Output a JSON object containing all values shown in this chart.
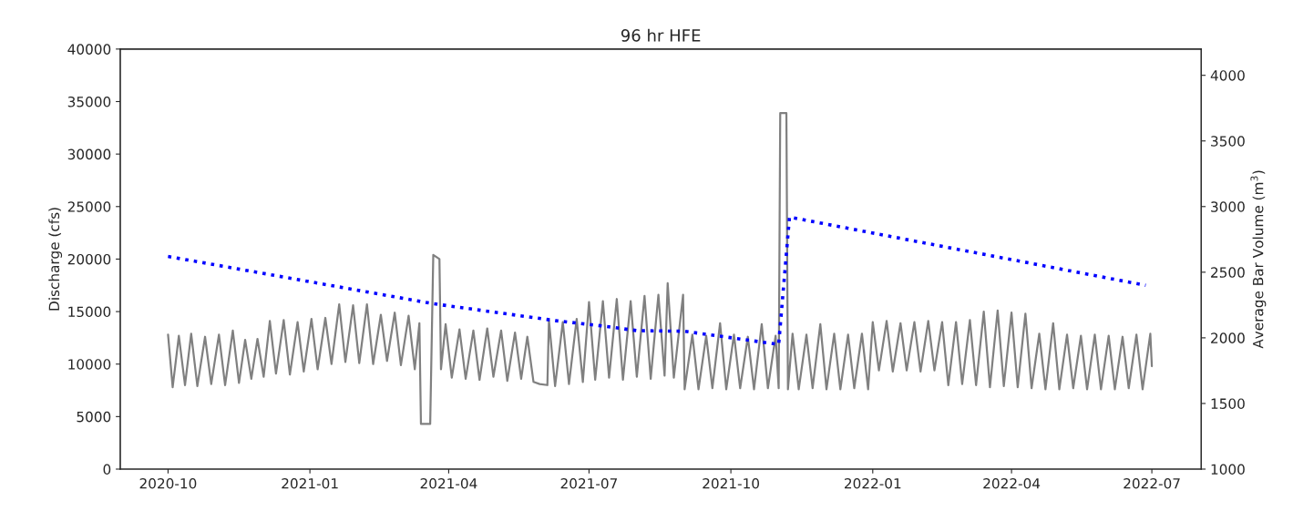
{
  "chart_data": {
    "type": "line",
    "title": "96 hr HFE",
    "ylabel": "Discharge (cfs)",
    "y2label": "Average Bar Volume (m$^{3}$)",
    "xlim": [
      "2020-08-31",
      "2022-08-02"
    ],
    "xticks": [
      "2020-10",
      "2021-01",
      "2021-04",
      "2021-07",
      "2021-10",
      "2022-01",
      "2022-04",
      "2022-07"
    ],
    "ylim": [
      0,
      40000
    ],
    "yticks": [
      0,
      5000,
      10000,
      15000,
      20000,
      25000,
      30000,
      35000,
      40000
    ],
    "y2lim": [
      1000,
      4200
    ],
    "y2ticks": [
      1000,
      1500,
      2000,
      2500,
      3000,
      3500,
      4000
    ],
    "grid": false,
    "legend": false,
    "series": [
      {
        "color": "#808080",
        "line_style": "solid",
        "x": [
          "2020-10-01",
          "2020-10-04",
          "2020-10-08",
          "2020-10-12",
          "2020-10-16",
          "2020-10-20",
          "2020-10-25",
          "2020-10-29",
          "2020-11-03",
          "2020-11-07",
          "2020-11-12",
          "2020-11-16",
          "2020-11-20",
          "2020-11-24",
          "2020-11-28",
          "2020-12-02",
          "2020-12-06",
          "2020-12-10",
          "2020-12-15",
          "2020-12-19",
          "2020-12-24",
          "2020-12-28",
          "2021-01-02",
          "2021-01-06",
          "2021-01-11",
          "2021-01-15",
          "2021-01-20",
          "2021-01-24",
          "2021-01-29",
          "2021-02-02",
          "2021-02-07",
          "2021-02-11",
          "2021-02-16",
          "2021-02-20",
          "2021-02-25",
          "2021-03-01",
          "2021-03-06",
          "2021-03-10",
          "2021-03-13",
          "2021-03-14",
          "2021-03-20",
          "2021-03-22",
          "2021-03-26",
          "2021-03-27",
          "2021-03-30",
          "2021-04-03",
          "2021-04-08",
          "2021-04-12",
          "2021-04-17",
          "2021-04-21",
          "2021-04-26",
          "2021-04-30",
          "2021-05-05",
          "2021-05-09",
          "2021-05-14",
          "2021-05-18",
          "2021-05-22",
          "2021-05-26",
          "2021-05-30",
          "2021-06-04",
          "2021-06-05",
          "2021-06-09",
          "2021-06-14",
          "2021-06-18",
          "2021-06-23",
          "2021-06-27",
          "2021-07-01",
          "2021-07-05",
          "2021-07-10",
          "2021-07-14",
          "2021-07-19",
          "2021-07-23",
          "2021-07-28",
          "2021-08-01",
          "2021-08-06",
          "2021-08-10",
          "2021-08-15",
          "2021-08-19",
          "2021-08-21",
          "2021-08-25",
          "2021-08-31",
          "2021-09-01",
          "2021-09-06",
          "2021-09-10",
          "2021-09-15",
          "2021-09-19",
          "2021-09-24",
          "2021-09-28",
          "2021-10-03",
          "2021-10-07",
          "2021-10-12",
          "2021-10-16",
          "2021-10-21",
          "2021-10-25",
          "2021-10-30",
          "2021-11-01",
          "2021-11-02",
          "2021-11-06",
          "2021-11-07",
          "2021-11-10",
          "2021-11-14",
          "2021-11-19",
          "2021-11-23",
          "2021-11-28",
          "2021-12-02",
          "2021-12-07",
          "2021-12-11",
          "2021-12-16",
          "2021-12-20",
          "2021-12-25",
          "2021-12-29",
          "2022-01-01",
          "2022-01-05",
          "2022-01-10",
          "2022-01-14",
          "2022-01-19",
          "2022-01-23",
          "2022-01-28",
          "2022-02-01",
          "2022-02-06",
          "2022-02-10",
          "2022-02-15",
          "2022-02-19",
          "2022-02-24",
          "2022-02-28",
          "2022-03-05",
          "2022-03-09",
          "2022-03-14",
          "2022-03-18",
          "2022-03-23",
          "2022-03-27",
          "2022-04-01",
          "2022-04-05",
          "2022-04-10",
          "2022-04-14",
          "2022-04-19",
          "2022-04-23",
          "2022-04-28",
          "2022-05-02",
          "2022-05-07",
          "2022-05-11",
          "2022-05-16",
          "2022-05-20",
          "2022-05-25",
          "2022-05-29",
          "2022-06-03",
          "2022-06-07",
          "2022-06-12",
          "2022-06-16",
          "2022-06-21",
          "2022-06-25",
          "2022-06-30",
          "2022-07-01"
        ],
        "values": [
          12800,
          7800,
          12700,
          8000,
          12900,
          7900,
          12600,
          8100,
          12800,
          8000,
          13200,
          8200,
          12300,
          8600,
          12400,
          8800,
          14100,
          9100,
          14200,
          9000,
          14000,
          9300,
          14300,
          9500,
          14400,
          10000,
          15700,
          10200,
          15600,
          10100,
          15700,
          10000,
          14700,
          10300,
          14900,
          9900,
          14600,
          9500,
          13900,
          4300,
          4300,
          20400,
          20000,
          9500,
          13800,
          8700,
          13300,
          8600,
          13200,
          8500,
          13400,
          8800,
          13200,
          8400,
          13000,
          8600,
          12600,
          8300,
          8100,
          8000,
          14200,
          7900,
          14000,
          8100,
          14300,
          8300,
          15900,
          8500,
          16000,
          8700,
          16200,
          8500,
          16000,
          8800,
          16500,
          8600,
          16600,
          8900,
          17700,
          8700,
          16600,
          7600,
          12800,
          7600,
          12700,
          7700,
          13900,
          7600,
          12800,
          7700,
          12600,
          7600,
          13800,
          7700,
          12700,
          7700,
          33900,
          33900,
          7600,
          12900,
          7600,
          12800,
          7700,
          13800,
          7600,
          12900,
          7600,
          12800,
          7700,
          12900,
          7600,
          14000,
          9400,
          14100,
          9300,
          13900,
          9400,
          14000,
          9300,
          14100,
          9400,
          14000,
          8000,
          14000,
          8100,
          14200,
          8000,
          15000,
          7800,
          15100,
          7900,
          14900,
          7800,
          14800,
          7700,
          12900,
          7600,
          13900,
          7600,
          12800,
          7700,
          12700,
          7600,
          12800,
          7600,
          12700,
          7600,
          12600,
          7700,
          12800,
          7600,
          12900,
          9800
        ]
      },
      {
        "color": "#0000ff",
        "line_style": "dotted",
        "axis": "y2",
        "x": [
          "2020-10-01",
          "2021-03-22",
          "2021-06-10",
          "2021-07-10",
          "2021-08-01",
          "2021-09-01",
          "2021-11-01",
          "2021-11-08",
          "2022-06-27"
        ],
        "values": [
          2620,
          2260,
          2130,
          2090,
          2055,
          2050,
          1950,
          2920,
          2400
        ]
      }
    ]
  }
}
